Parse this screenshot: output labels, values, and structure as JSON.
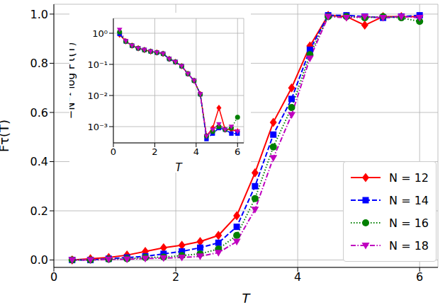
{
  "chart_data": [
    {
      "type": "line",
      "x_label": "T",
      "y_label": "Fτ(T)",
      "x": [
        0.3,
        0.6,
        0.9,
        1.2,
        1.5,
        1.8,
        2.1,
        2.4,
        2.7,
        3.0,
        3.3,
        3.6,
        3.9,
        4.2,
        4.5,
        4.8,
        5.1,
        5.4,
        5.7,
        6.0
      ],
      "series": [
        {
          "name": "N = 12",
          "color": "#ff0000",
          "marker": "diamond",
          "line_style": "solid",
          "values": [
            0.0,
            0.005,
            0.01,
            0.02,
            0.035,
            0.05,
            0.06,
            0.075,
            0.1,
            0.18,
            0.355,
            0.56,
            0.7,
            0.87,
            0.995,
            0.99,
            0.955,
            0.99,
            0.99,
            0.99
          ]
        },
        {
          "name": "N = 14",
          "color": "#0000ff",
          "marker": "square",
          "line_style": "dashed",
          "values": [
            0.0,
            0.0,
            0.005,
            0.01,
            0.015,
            0.025,
            0.035,
            0.05,
            0.07,
            0.135,
            0.3,
            0.51,
            0.655,
            0.855,
            0.995,
            0.995,
            0.99,
            0.985,
            0.99,
            0.995
          ]
        },
        {
          "name": "N = 16",
          "color": "#008000",
          "marker": "circle",
          "line_style": "dotted",
          "values": [
            0.0,
            0.0,
            0.003,
            0.005,
            0.01,
            0.012,
            0.018,
            0.025,
            0.045,
            0.1,
            0.25,
            0.46,
            0.62,
            0.835,
            0.99,
            0.99,
            0.985,
            0.99,
            0.985,
            0.97
          ]
        },
        {
          "name": "N = 18",
          "color": "#bf00bf",
          "marker": "triangle_down",
          "line_style": "dashdot",
          "values": [
            0.0,
            0.0,
            0.002,
            0.003,
            0.006,
            0.008,
            0.01,
            0.015,
            0.03,
            0.075,
            0.205,
            0.415,
            0.59,
            0.82,
            0.99,
            0.985,
            0.99,
            0.985,
            0.99,
            0.985
          ]
        }
      ],
      "xlim": [
        0,
        6.3
      ],
      "ylim": [
        -0.03,
        1.04
      ],
      "xticks": [
        0,
        2,
        4,
        6
      ],
      "yticks": [
        {
          "value": 0,
          "label": "0.0"
        },
        {
          "value": 0.2,
          "label": "0.2"
        },
        {
          "value": 0.4,
          "label": "0.4"
        },
        {
          "value": 0.6,
          "label": "0.6"
        },
        {
          "value": 0.8,
          "label": "0.8"
        },
        {
          "value": 1.0,
          "label": "1.0"
        }
      ],
      "grid": true,
      "legend": "lower right"
    },
    {
      "type": "line",
      "x_label": "T",
      "y_label": "−N⁻¹ log Fτ(T)",
      "log": "y",
      "x": [
        0.3,
        0.6,
        0.9,
        1.2,
        1.5,
        1.8,
        2.1,
        2.4,
        2.7,
        3.0,
        3.3,
        3.6,
        3.9,
        4.2,
        4.5,
        4.8,
        5.1,
        5.4,
        5.7,
        6.0
      ],
      "series": [
        {
          "name": "N = 12",
          "color": "#ff0000",
          "marker": "diamond",
          "line_style": "solid",
          "values": [
            0.9,
            0.55,
            0.4,
            0.33,
            0.29,
            0.26,
            0.24,
            0.22,
            0.15,
            0.12,
            0.088,
            0.05,
            0.03,
            0.011,
            0.0005,
            0.0009,
            0.004,
            0.0008,
            0.0008,
            0.0007
          ]
        },
        {
          "name": "N = 14",
          "color": "#0000ff",
          "marker": "square",
          "line_style": "dashed",
          "values": [
            0.95,
            0.55,
            0.4,
            0.33,
            0.29,
            0.26,
            0.24,
            0.22,
            0.15,
            0.12,
            0.088,
            0.05,
            0.03,
            0.011,
            0.0004,
            0.0006,
            0.0009,
            0.0008,
            0.0006,
            0.0006
          ]
        },
        {
          "name": "N = 16",
          "color": "#008000",
          "marker": "circle",
          "line_style": "dotted",
          "values": [
            1.1,
            0.55,
            0.4,
            0.33,
            0.29,
            0.26,
            0.24,
            0.22,
            0.15,
            0.12,
            0.088,
            0.05,
            0.03,
            0.011,
            0.0005,
            0.0007,
            0.001,
            0.0008,
            0.0009,
            0.002
          ]
        },
        {
          "name": "N = 18",
          "color": "#bf00bf",
          "marker": "triangle_down",
          "line_style": "dashdot",
          "values": [
            1.3,
            0.56,
            0.4,
            0.33,
            0.29,
            0.26,
            0.24,
            0.22,
            0.15,
            0.12,
            0.088,
            0.05,
            0.03,
            0.011,
            0.0005,
            0.0008,
            0.0012,
            0.0008,
            0.001,
            0.0007
          ]
        }
      ],
      "xlim": [
        0,
        6.3
      ],
      "ylim": [
        0.0003,
        3
      ],
      "xticks": [
        0,
        2,
        4,
        6
      ],
      "yticks": [
        {
          "value": 0.001,
          "label": "10⁻³"
        },
        {
          "value": 0.01,
          "label": "10⁻²"
        },
        {
          "value": 0.1,
          "label": "10⁻¹"
        },
        {
          "value": 1,
          "label": "10⁰"
        }
      ],
      "grid": true
    }
  ]
}
